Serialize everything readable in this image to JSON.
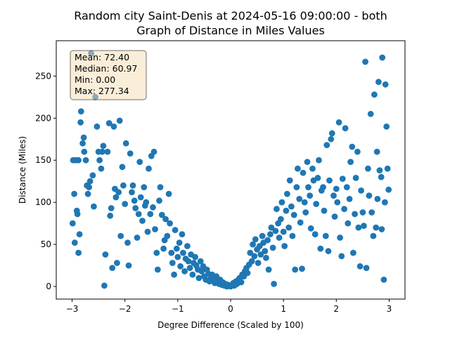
{
  "chart_data": {
    "type": "scatter",
    "title_line1": "Random city Saint-Denis at 2024-05-16 09:00:00  - both",
    "title_line2": "Graph of Distance in Miles Values",
    "xlabel": "Degree Difference (Scaled by 100)",
    "ylabel": "Distance (Miles)",
    "xlim": [
      -3.3,
      3.3
    ],
    "ylim": [
      -15,
      292
    ],
    "xticks": [
      -3,
      -2,
      -1,
      0,
      1,
      2,
      3
    ],
    "xtick_labels": [
      "−3",
      "−2",
      "−1",
      "0",
      "1",
      "2",
      "3"
    ],
    "yticks": [
      0,
      50,
      100,
      150,
      200,
      250
    ],
    "ytick_labels": [
      "0",
      "50",
      "100",
      "150",
      "200",
      "250"
    ],
    "grid": false,
    "marker_color": "#1f77b4",
    "stats": {
      "mean": "Mean: 72.40",
      "median": "Median: 60.97",
      "min": "Min: 0.00",
      "max": "Max: 277.34"
    },
    "stats_box_color": "#f5deb3",
    "series": [
      {
        "points": [
          [
            -2.98,
            150
          ],
          [
            -2.93,
            150
          ],
          [
            -2.88,
            150
          ],
          [
            -2.99,
            75
          ],
          [
            -2.96,
            110
          ],
          [
            -2.95,
            52
          ],
          [
            -2.91,
            90
          ],
          [
            -2.9,
            86
          ],
          [
            -2.88,
            40
          ],
          [
            -2.86,
            62
          ],
          [
            -2.84,
            195
          ],
          [
            -2.83,
            208
          ],
          [
            -2.8,
            170
          ],
          [
            -2.78,
            177
          ],
          [
            -2.77,
            160
          ],
          [
            -2.74,
            150
          ],
          [
            -2.72,
            120
          ],
          [
            -2.7,
            110
          ],
          [
            -2.68,
            118
          ],
          [
            -2.66,
            125
          ],
          [
            -2.64,
            277
          ],
          [
            -2.61,
            132
          ],
          [
            -2.59,
            95
          ],
          [
            -2.56,
            225
          ],
          [
            -2.53,
            190
          ],
          [
            -2.5,
            160
          ],
          [
            -2.48,
            150
          ],
          [
            -2.45,
            140
          ],
          [
            -2.43,
            160
          ],
          [
            -2.41,
            167
          ],
          [
            -2.39,
            1
          ],
          [
            -2.37,
            38
          ],
          [
            -2.33,
            160
          ],
          [
            -2.3,
            194
          ],
          [
            -2.28,
            84
          ],
          [
            -2.26,
            93
          ],
          [
            -2.24,
            22
          ],
          [
            -2.21,
            190
          ],
          [
            -2.19,
            116
          ],
          [
            -2.17,
            106
          ],
          [
            -2.15,
            28
          ],
          [
            -2.12,
            112
          ],
          [
            -2.1,
            197
          ],
          [
            -2.08,
            60
          ],
          [
            -2.05,
            142
          ],
          [
            -2.03,
            120
          ],
          [
            -2.0,
            98
          ],
          [
            -1.98,
            170
          ],
          [
            -1.95,
            52
          ],
          [
            -1.93,
            25
          ],
          [
            -1.9,
            158
          ],
          [
            -1.87,
            112
          ],
          [
            -1.85,
            120
          ],
          [
            -1.82,
            102
          ],
          [
            -1.8,
            93
          ],
          [
            -1.77,
            58
          ],
          [
            -1.74,
            86
          ],
          [
            -1.72,
            148
          ],
          [
            -1.7,
            106
          ],
          [
            -1.67,
            78
          ],
          [
            -1.64,
            118
          ],
          [
            -1.62,
            96
          ],
          [
            -1.6,
            100
          ],
          [
            -1.57,
            65
          ],
          [
            -1.55,
            140
          ],
          [
            -1.52,
            86
          ],
          [
            -1.5,
            155
          ],
          [
            -1.47,
            94
          ],
          [
            -1.45,
            160
          ],
          [
            -1.43,
            68
          ],
          [
            -1.4,
            40
          ],
          [
            -1.38,
            20
          ],
          [
            -1.35,
            102
          ],
          [
            -1.33,
            118
          ],
          [
            -1.3,
            85
          ],
          [
            -1.27,
            45
          ],
          [
            -1.25,
            55
          ],
          [
            -1.23,
            80
          ],
          [
            -1.2,
            60
          ],
          [
            -1.17,
            110
          ],
          [
            -1.15,
            75
          ],
          [
            -1.12,
            40
          ],
          [
            -1.1,
            28
          ],
          [
            -1.07,
            14
          ],
          [
            -1.05,
            67
          ],
          [
            -1.02,
            45
          ],
          [
            -1.0,
            35
          ],
          [
            -0.97,
            52
          ],
          [
            -0.95,
            24
          ],
          [
            -0.92,
            62
          ],
          [
            -0.9,
            40
          ],
          [
            -0.87,
            18
          ],
          [
            -0.85,
            33
          ],
          [
            -0.82,
            48
          ],
          [
            -0.8,
            30
          ],
          [
            -0.77,
            22
          ],
          [
            -0.75,
            38
          ],
          [
            -0.72,
            14
          ],
          [
            -0.7,
            28
          ],
          [
            -0.67,
            35
          ],
          [
            -0.65,
            25
          ],
          [
            -0.62,
            20
          ],
          [
            -0.6,
            10
          ],
          [
            -0.57,
            30
          ],
          [
            -0.55,
            18
          ],
          [
            -0.52,
            24
          ],
          [
            -0.5,
            12
          ],
          [
            -0.47,
            8
          ],
          [
            -0.45,
            20
          ],
          [
            -0.42,
            15
          ],
          [
            -0.4,
            6
          ],
          [
            -0.37,
            10
          ],
          [
            -0.35,
            14
          ],
          [
            -0.32,
            8
          ],
          [
            -0.3,
            4
          ],
          [
            -0.27,
            12
          ],
          [
            -0.25,
            6
          ],
          [
            -0.22,
            3
          ],
          [
            -0.2,
            8
          ],
          [
            -0.17,
            2
          ],
          [
            -0.15,
            5
          ],
          [
            -0.12,
            1
          ],
          [
            -0.1,
            3
          ],
          [
            -0.07,
            0
          ],
          [
            -0.05,
            2
          ],
          [
            -0.02,
            1
          ],
          [
            0.0,
            0
          ],
          [
            0.03,
            2
          ],
          [
            0.05,
            4
          ],
          [
            0.07,
            1
          ],
          [
            0.1,
            6
          ],
          [
            0.12,
            3
          ],
          [
            0.15,
            8
          ],
          [
            0.17,
            10
          ],
          [
            0.2,
            5
          ],
          [
            0.22,
            14
          ],
          [
            0.25,
            12
          ],
          [
            0.27,
            18
          ],
          [
            0.3,
            22
          ],
          [
            0.32,
            16
          ],
          [
            0.35,
            26
          ],
          [
            0.37,
            40
          ],
          [
            0.4,
            30
          ],
          [
            0.42,
            50
          ],
          [
            0.45,
            36
          ],
          [
            0.47,
            56
          ],
          [
            0.5,
            44
          ],
          [
            0.52,
            28
          ],
          [
            0.55,
            48
          ],
          [
            0.57,
            38
          ],
          [
            0.6,
            60
          ],
          [
            0.62,
            52
          ],
          [
            0.65,
            42
          ],
          [
            0.67,
            34
          ],
          [
            0.7,
            55
          ],
          [
            0.72,
            20
          ],
          [
            0.75,
            62
          ],
          [
            0.77,
            70
          ],
          [
            0.8,
            46
          ],
          [
            0.82,
            3
          ],
          [
            0.85,
            66
          ],
          [
            0.87,
            92
          ],
          [
            0.9,
            75
          ],
          [
            0.92,
            58
          ],
          [
            0.95,
            80
          ],
          [
            0.97,
            100
          ],
          [
            1.0,
            65
          ],
          [
            1.02,
            48
          ],
          [
            1.05,
            90
          ],
          [
            1.07,
            110
          ],
          [
            1.1,
            70
          ],
          [
            1.12,
            126
          ],
          [
            1.15,
            95
          ],
          [
            1.17,
            60
          ],
          [
            1.2,
            85
          ],
          [
            1.22,
            20
          ],
          [
            1.25,
            118
          ],
          [
            1.27,
            140
          ],
          [
            1.3,
            104
          ],
          [
            1.32,
            76
          ],
          [
            1.35,
            21
          ],
          [
            1.37,
            135
          ],
          [
            1.4,
            100
          ],
          [
            1.42,
            88
          ],
          [
            1.45,
            148
          ],
          [
            1.47,
            118
          ],
          [
            1.5,
            108
          ],
          [
            1.52,
            69
          ],
          [
            1.55,
            140
          ],
          [
            1.57,
            126
          ],
          [
            1.6,
            62
          ],
          [
            1.62,
            98
          ],
          [
            1.65,
            129
          ],
          [
            1.67,
            150
          ],
          [
            1.7,
            45
          ],
          [
            1.72,
            114
          ],
          [
            1.75,
            118
          ],
          [
            1.77,
            90
          ],
          [
            1.8,
            60
          ],
          [
            1.82,
            168
          ],
          [
            1.85,
            42
          ],
          [
            1.87,
            126
          ],
          [
            1.9,
            175
          ],
          [
            1.92,
            182
          ],
          [
            1.95,
            108
          ],
          [
            1.97,
            83
          ],
          [
            2.0,
            116
          ],
          [
            2.02,
            100
          ],
          [
            2.05,
            195
          ],
          [
            2.07,
            58
          ],
          [
            2.1,
            36
          ],
          [
            2.12,
            128
          ],
          [
            2.15,
            92
          ],
          [
            2.17,
            188
          ],
          [
            2.2,
            118
          ],
          [
            2.22,
            75
          ],
          [
            2.25,
            104
          ],
          [
            2.27,
            148
          ],
          [
            2.3,
            166
          ],
          [
            2.32,
            40
          ],
          [
            2.35,
            86
          ],
          [
            2.37,
            129
          ],
          [
            2.4,
            160
          ],
          [
            2.42,
            70
          ],
          [
            2.45,
            24
          ],
          [
            2.47,
            114
          ],
          [
            2.5,
            88
          ],
          [
            2.52,
            72
          ],
          [
            2.55,
            267
          ],
          [
            2.57,
            22
          ],
          [
            2.6,
            140
          ],
          [
            2.62,
            108
          ],
          [
            2.65,
            205
          ],
          [
            2.67,
            88
          ],
          [
            2.7,
            60
          ],
          [
            2.72,
            228
          ],
          [
            2.75,
            70
          ],
          [
            2.77,
            160
          ],
          [
            2.8,
            243
          ],
          [
            2.82,
            138
          ],
          [
            2.85,
            130
          ],
          [
            2.87,
            272
          ],
          [
            2.9,
            8
          ],
          [
            2.93,
            240
          ],
          [
            2.95,
            190
          ],
          [
            2.97,
            140
          ],
          [
            2.99,
            115
          ],
          [
            2.92,
            100
          ],
          [
            2.86,
            68
          ],
          [
            2.78,
            104
          ]
        ]
      }
    ]
  }
}
